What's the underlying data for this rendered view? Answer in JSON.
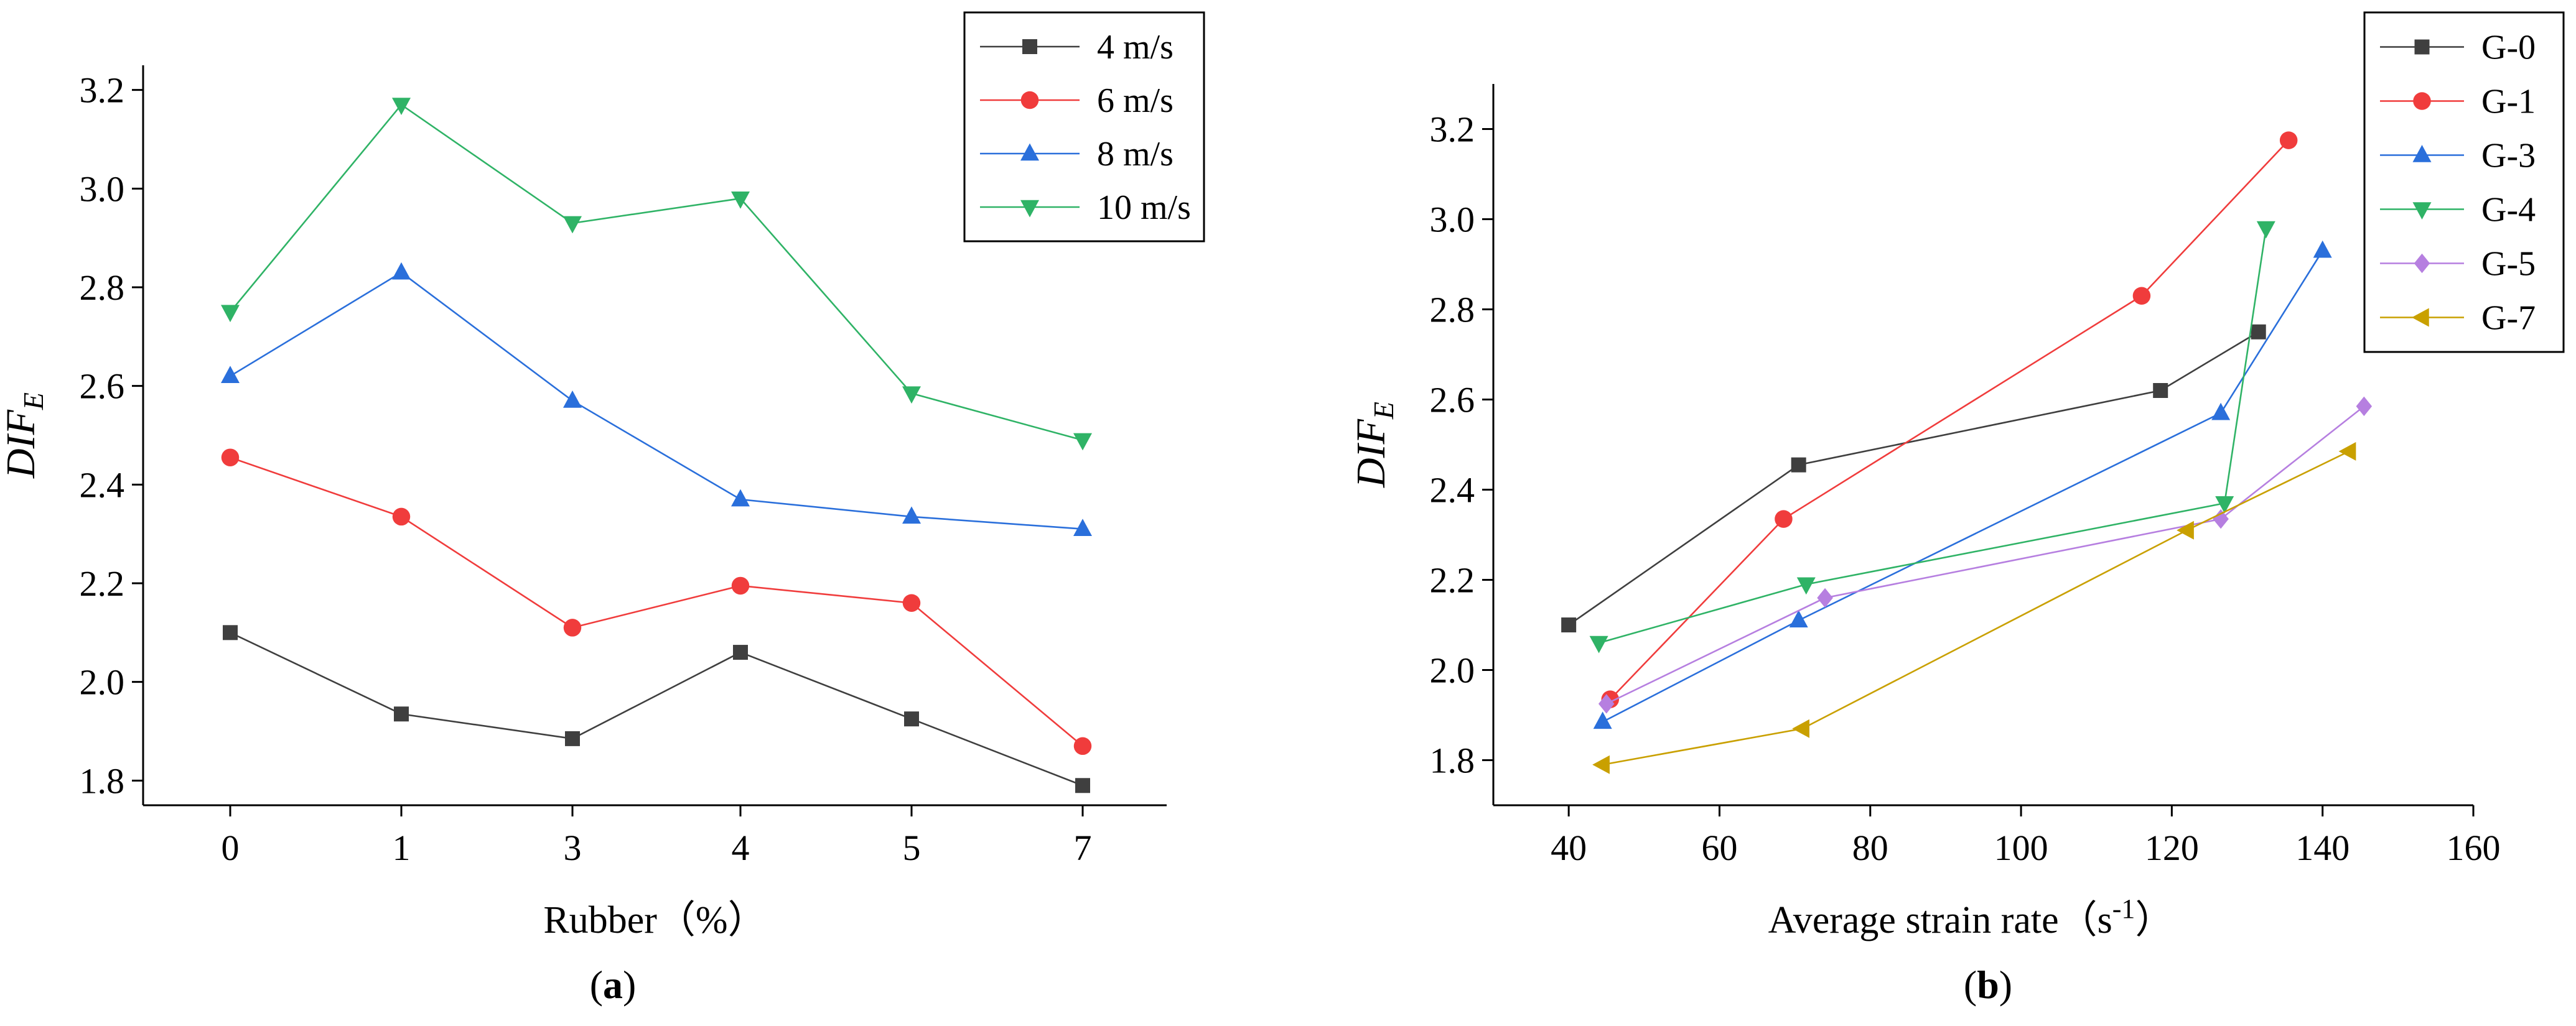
{
  "chart_data": [
    {
      "id": "a",
      "type": "line",
      "caption": "a",
      "title": "",
      "xlabel": "Rubber（%）",
      "ylabel": "DIF",
      "ylabel_sub": "E",
      "categories": [
        "0",
        "1",
        "3",
        "4",
        "5",
        "7"
      ],
      "ylim": [
        1.75,
        3.25
      ],
      "yticks": [
        1.8,
        2.0,
        2.2,
        2.4,
        2.6,
        2.8,
        3.0,
        3.2
      ],
      "ytick_labels": [
        "1.8",
        "2.0",
        "2.2",
        "2.4",
        "2.6",
        "2.8",
        "3.0",
        "3.2"
      ],
      "legend_position": "top-right",
      "series": [
        {
          "name": "4 m/s",
          "color": "#3f3f3f",
          "marker": "square",
          "values": [
            2.1,
            1.935,
            1.885,
            2.06,
            1.925,
            1.79
          ]
        },
        {
          "name": "6 m/s",
          "color": "#f03c3c",
          "marker": "circle",
          "values": [
            2.455,
            2.335,
            2.11,
            2.195,
            2.16,
            1.87
          ]
        },
        {
          "name": "8 m/s",
          "color": "#2a6fdb",
          "marker": "triangle-up",
          "values": [
            2.62,
            2.83,
            2.57,
            2.37,
            2.335,
            2.31
          ]
        },
        {
          "name": "10 m/s",
          "color": "#2fb366",
          "marker": "triangle-down",
          "values": [
            2.75,
            3.17,
            2.93,
            2.98,
            2.585,
            2.49
          ]
        }
      ]
    },
    {
      "id": "b",
      "type": "line",
      "caption": "b",
      "title": "",
      "xlabel": "Average strain rate（s",
      "xlabel_sup": "-1",
      "xlabel_end": "）",
      "ylabel": "DIF",
      "ylabel_sub": "E",
      "xlim": [
        30,
        160
      ],
      "ylim": [
        1.7,
        3.3
      ],
      "xticks": [
        40,
        60,
        80,
        100,
        120,
        140,
        160
      ],
      "xtick_labels": [
        "40",
        "60",
        "80",
        "100",
        "120",
        "140",
        "160"
      ],
      "yticks": [
        1.8,
        2.0,
        2.2,
        2.4,
        2.6,
        2.8,
        3.0,
        3.2
      ],
      "ytick_labels": [
        "1.8",
        "2.0",
        "2.2",
        "2.4",
        "2.6",
        "2.8",
        "3.0",
        "3.2"
      ],
      "legend_position": "top-right outside",
      "series": [
        {
          "name": "G-0",
          "color": "#3f3f3f",
          "marker": "square",
          "x": [
            40,
            70.5,
            118.5,
            131.5
          ],
          "y": [
            2.1,
            2.455,
            2.62,
            2.75
          ]
        },
        {
          "name": "G-1",
          "color": "#f03c3c",
          "marker": "circle",
          "x": [
            45.5,
            68.5,
            116,
            135.5
          ],
          "y": [
            1.935,
            2.335,
            2.83,
            3.175
          ]
        },
        {
          "name": "G-3",
          "color": "#2a6fdb",
          "marker": "triangle-up",
          "x": [
            44.5,
            70.5,
            126.5,
            140
          ],
          "y": [
            1.885,
            2.11,
            2.57,
            2.93
          ]
        },
        {
          "name": "G-4",
          "color": "#2fb366",
          "marker": "triangle-down",
          "x": [
            44,
            71.5,
            127,
            132.5
          ],
          "y": [
            2.06,
            2.19,
            2.37,
            2.98
          ]
        },
        {
          "name": "G-5",
          "color": "#b67fe0",
          "marker": "diamond",
          "x": [
            45,
            74,
            126.5,
            145.5
          ],
          "y": [
            1.925,
            2.16,
            2.335,
            2.585
          ]
        },
        {
          "name": "G-7",
          "color": "#c9a000",
          "marker": "triangle-left",
          "x": [
            44.5,
            71,
            122,
            143.5
          ],
          "y": [
            1.79,
            1.87,
            2.31,
            2.485
          ]
        }
      ]
    }
  ]
}
